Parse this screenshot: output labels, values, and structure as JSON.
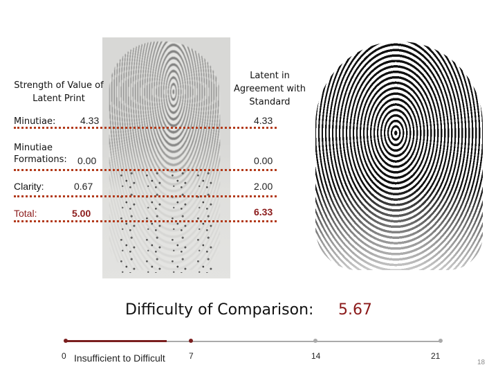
{
  "headers": {
    "latent": "Strength of Value of Latent Print",
    "agreement": "Latent in Agreement with Standard"
  },
  "rows": [
    {
      "label": "Minutiae:",
      "latent_value": "4.33",
      "agreement_value": "4.33"
    },
    {
      "label": "Minutiae Formations:",
      "latent_value": "0.00",
      "agreement_value": "0.00"
    },
    {
      "label": "Clarity:",
      "latent_value": "0.67",
      "agreement_value": "2.00"
    },
    {
      "label": "Total:",
      "latent_value": "5.00",
      "agreement_value": "6.33"
    }
  ],
  "difficulty": {
    "label": "Difficulty of Comparison:",
    "value": "5.67",
    "value_fraction_of_scale": 0.27
  },
  "scale": {
    "ticks": [
      "0",
      "7",
      "14",
      "21"
    ],
    "range_label": "Insufficient to Difficult",
    "fill_color": "#7a1e1e",
    "track_color": "#aaaaaa"
  },
  "colors": {
    "accent_red": "#8b1a1a",
    "dotted_line": "#b23a1a"
  },
  "page_number": "18"
}
